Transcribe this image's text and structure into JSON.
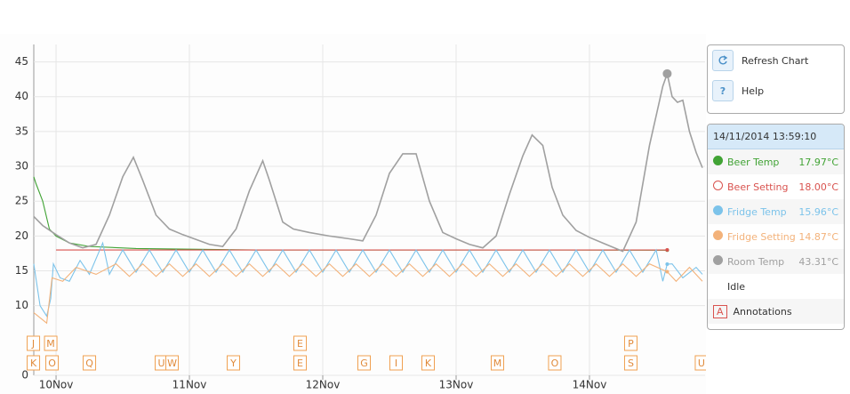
{
  "chart_data": {
    "type": "line",
    "xlim": [
      9.833,
      14.867
    ],
    "ylim": [
      0,
      47.5
    ],
    "yticks": [
      0,
      10,
      15,
      20,
      25,
      30,
      35,
      40,
      45
    ],
    "xticks": [
      {
        "value": 10,
        "label": "10Nov"
      },
      {
        "value": 11,
        "label": "11Nov"
      },
      {
        "value": 12,
        "label": "12Nov"
      },
      {
        "value": 13,
        "label": "13Nov"
      },
      {
        "value": 14,
        "label": "14Nov"
      }
    ],
    "grid": true,
    "cursor_x": 14.583,
    "cursor_time": "14/11/2014 13:59:10",
    "series": [
      {
        "name": "Beer Temp",
        "color": "#41a335",
        "marker": "filled",
        "hover_value": 17.97,
        "hover_label": "17.97°C",
        "x": [
          9.833,
          9.85,
          9.9,
          9.95,
          10.0,
          10.1,
          10.25,
          10.6,
          11.5,
          12.5,
          13.5,
          14.583
        ],
        "values": [
          28.5,
          27.5,
          25,
          21,
          20,
          19,
          18.5,
          18.2,
          18,
          18,
          18,
          17.97
        ]
      },
      {
        "name": "Beer Setting",
        "color": "#d9534f",
        "marker": "hollow",
        "hover_value": 18.0,
        "hover_label": "18.00°C",
        "x": [
          10.0,
          14.583
        ],
        "values": [
          18,
          18
        ]
      },
      {
        "name": "Fridge Temp",
        "color": "#7cc3ea",
        "marker": "filled",
        "hover_value": 15.96,
        "hover_label": "15.96°C",
        "x": [
          9.833,
          9.88,
          9.93,
          9.96,
          9.98,
          10.03,
          10.1,
          10.18,
          10.25,
          10.35,
          10.4,
          10.5,
          10.6,
          10.7,
          10.8,
          10.9,
          11.0,
          11.1,
          11.2,
          11.3,
          11.4,
          11.5,
          11.6,
          11.7,
          11.8,
          11.9,
          12.0,
          12.1,
          12.2,
          12.3,
          12.4,
          12.5,
          12.6,
          12.7,
          12.8,
          12.9,
          13.0,
          13.1,
          13.2,
          13.3,
          13.4,
          13.5,
          13.6,
          13.7,
          13.8,
          13.9,
          14.0,
          14.1,
          14.2,
          14.3,
          14.4,
          14.5,
          14.55,
          14.583,
          14.62,
          14.7,
          14.8,
          14.847
        ],
        "values": [
          16,
          10,
          8.5,
          11,
          16,
          14,
          13.5,
          16.5,
          14.5,
          19,
          14.5,
          18,
          14.8,
          18,
          14.8,
          18,
          14.8,
          18,
          14.8,
          18,
          14.8,
          18,
          14.8,
          18,
          14.8,
          18,
          14.8,
          18,
          14.8,
          18,
          14.8,
          18,
          14.8,
          18,
          14.8,
          18,
          14.8,
          18,
          14.8,
          18,
          14.8,
          18,
          14.8,
          18,
          14.8,
          18,
          14.8,
          18,
          14.8,
          18,
          14.8,
          18,
          13.5,
          15.96,
          16,
          14,
          15.5,
          14.5
        ]
      },
      {
        "name": "Fridge Setting",
        "color": "#f3b27a",
        "marker": "filled",
        "hover_value": 14.87,
        "hover_label": "14.87°C",
        "x": [
          9.833,
          9.93,
          9.97,
          10.05,
          10.15,
          10.3,
          10.45,
          10.55,
          10.65,
          10.75,
          10.85,
          10.95,
          11.05,
          11.15,
          11.25,
          11.35,
          11.45,
          11.55,
          11.65,
          11.75,
          11.85,
          11.95,
          12.05,
          12.15,
          12.25,
          12.35,
          12.45,
          12.55,
          12.65,
          12.75,
          12.85,
          12.95,
          13.05,
          13.15,
          13.25,
          13.35,
          13.45,
          13.55,
          13.65,
          13.75,
          13.85,
          13.95,
          14.05,
          14.15,
          14.25,
          14.35,
          14.45,
          14.583,
          14.65,
          14.75,
          14.847
        ],
        "values": [
          9,
          7.5,
          14,
          13.5,
          15.5,
          14.5,
          16,
          14.2,
          16,
          14.2,
          16,
          14.2,
          16,
          14.2,
          16,
          14.2,
          16,
          14.2,
          16,
          14.2,
          16,
          14.2,
          16,
          14.2,
          16,
          14.2,
          16,
          14.2,
          16,
          14.2,
          16,
          14.2,
          16,
          14.2,
          16,
          14.2,
          16,
          14.2,
          16,
          14.2,
          16,
          14.2,
          16,
          14.2,
          16,
          14.2,
          16,
          14.87,
          13.5,
          15.5,
          13.5
        ]
      },
      {
        "name": "Room Temp",
        "color": "#a0a0a0",
        "marker": "filled",
        "hover_value": 43.31,
        "hover_label": "43.31°C",
        "x": [
          9.833,
          9.9,
          10.0,
          10.1,
          10.2,
          10.3,
          10.4,
          10.5,
          10.58,
          10.65,
          10.75,
          10.85,
          10.95,
          11.05,
          11.15,
          11.25,
          11.35,
          11.45,
          11.55,
          11.6,
          11.7,
          11.78,
          11.9,
          12.05,
          12.2,
          12.3,
          12.4,
          12.5,
          12.6,
          12.7,
          12.8,
          12.9,
          13.0,
          13.1,
          13.2,
          13.3,
          13.4,
          13.5,
          13.57,
          13.65,
          13.72,
          13.8,
          13.9,
          14.0,
          14.1,
          14.25,
          14.35,
          14.45,
          14.55,
          14.583,
          14.62,
          14.66,
          14.7,
          14.75,
          14.8,
          14.847
        ],
        "values": [
          22.8,
          21.5,
          20.2,
          19.0,
          18.3,
          18.8,
          23,
          28.5,
          31.3,
          28,
          23,
          21,
          20.2,
          19.5,
          18.8,
          18.5,
          21,
          26.5,
          30.8,
          28,
          22,
          21,
          20.5,
          20,
          19.6,
          19.3,
          23,
          29,
          31.8,
          31.8,
          25,
          20.5,
          19.6,
          18.8,
          18.3,
          20,
          26,
          31.5,
          34.5,
          33,
          27,
          23,
          20.8,
          19.8,
          19,
          17.8,
          22,
          33,
          41.5,
          43.3,
          40,
          39.2,
          39.5,
          35,
          32,
          29.8
        ]
      }
    ],
    "annotations": [
      {
        "label": "J",
        "x": 9.83,
        "row": 1
      },
      {
        "label": "M",
        "x": 9.96,
        "row": 1
      },
      {
        "label": "E",
        "x": 11.83,
        "row": 1
      },
      {
        "label": "P",
        "x": 14.31,
        "row": 1
      },
      {
        "label": "K",
        "x": 9.83,
        "row": 2
      },
      {
        "label": "O",
        "x": 9.97,
        "row": 2
      },
      {
        "label": "Q",
        "x": 10.25,
        "row": 2
      },
      {
        "label": "U",
        "x": 10.79,
        "row": 2
      },
      {
        "label": "W",
        "x": 10.87,
        "row": 2
      },
      {
        "label": "Y",
        "x": 11.33,
        "row": 2
      },
      {
        "label": "E",
        "x": 11.83,
        "row": 2
      },
      {
        "label": "G",
        "x": 12.31,
        "row": 2
      },
      {
        "label": "I",
        "x": 12.55,
        "row": 2
      },
      {
        "label": "K",
        "x": 12.79,
        "row": 2
      },
      {
        "label": "M",
        "x": 13.31,
        "row": 2
      },
      {
        "label": "O",
        "x": 13.74,
        "row": 2
      },
      {
        "label": "S",
        "x": 14.31,
        "row": 2
      },
      {
        "label": "U",
        "x": 14.84,
        "row": 2
      }
    ],
    "state": "Idle",
    "annotations_label": "Annotations",
    "annotation_icon": "A",
    "buttons": [
      {
        "label": "Refresh Chart"
      },
      {
        "label": "Help",
        "icon": "?"
      }
    ]
  }
}
